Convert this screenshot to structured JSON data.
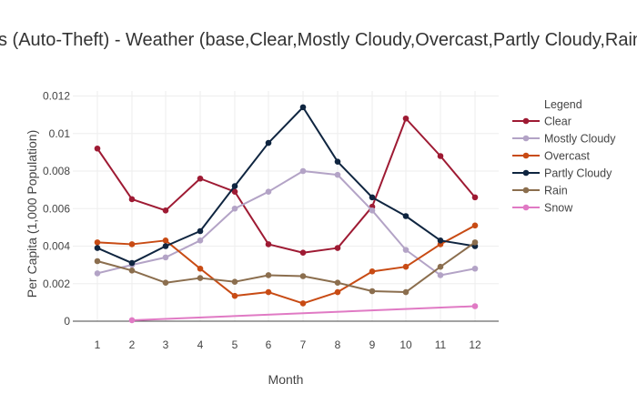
{
  "chart_data": {
    "type": "line",
    "title": "s (Auto-Theft) - Weather (base,Clear,Mostly Cloudy,Overcast,Partly Cloudy,Rain",
    "xlabel": "Month",
    "ylabel": "Per Capita (1,000 Population)",
    "x": [
      1,
      2,
      3,
      4,
      5,
      6,
      7,
      8,
      9,
      10,
      11,
      12
    ],
    "x_ticks": [
      "1",
      "2",
      "3",
      "4",
      "5",
      "6",
      "7",
      "8",
      "9",
      "10",
      "11",
      "12"
    ],
    "y_ticks": [
      "0",
      "0.002",
      "0.004",
      "0.006",
      "0.008",
      "0.01",
      "0.012"
    ],
    "ylim": [
      0,
      0.012
    ],
    "grid": true,
    "legend_title": "Legend",
    "legend_position": "right",
    "series": [
      {
        "name": "Clear",
        "color": "#9e1a33",
        "values": [
          0.0092,
          0.0065,
          0.0059,
          0.0076,
          0.0069,
          0.0041,
          0.00365,
          0.0039,
          0.0061,
          0.0108,
          0.0088,
          0.0066
        ]
      },
      {
        "name": "Mostly Cloudy",
        "color": "#b3a3c6",
        "values": [
          0.00255,
          0.003,
          0.0034,
          0.0043,
          0.006,
          0.0069,
          0.008,
          0.0078,
          0.0059,
          0.0038,
          0.00245,
          0.0028
        ]
      },
      {
        "name": "Overcast",
        "color": "#c84b14",
        "values": [
          0.0042,
          0.0041,
          0.0043,
          0.0028,
          0.00135,
          0.00155,
          0.00095,
          0.00155,
          0.00265,
          0.0029,
          0.0041,
          0.0051
        ]
      },
      {
        "name": "Partly Cloudy",
        "color": "#0f2540",
        "values": [
          0.0039,
          0.0031,
          0.004,
          0.0048,
          0.0072,
          0.0095,
          0.0114,
          0.0085,
          0.0066,
          0.0056,
          0.0043,
          0.004
        ]
      },
      {
        "name": "Rain",
        "color": "#8b6e4e",
        "values": [
          0.0032,
          0.0027,
          0.00205,
          0.0023,
          0.0021,
          0.00245,
          0.0024,
          0.00205,
          0.0016,
          0.00155,
          0.0029,
          0.0042
        ]
      },
      {
        "name": "Snow",
        "color": "#e07ac4",
        "values": [
          null,
          5e-05,
          null,
          null,
          null,
          null,
          null,
          null,
          null,
          null,
          null,
          0.0008
        ]
      }
    ]
  }
}
